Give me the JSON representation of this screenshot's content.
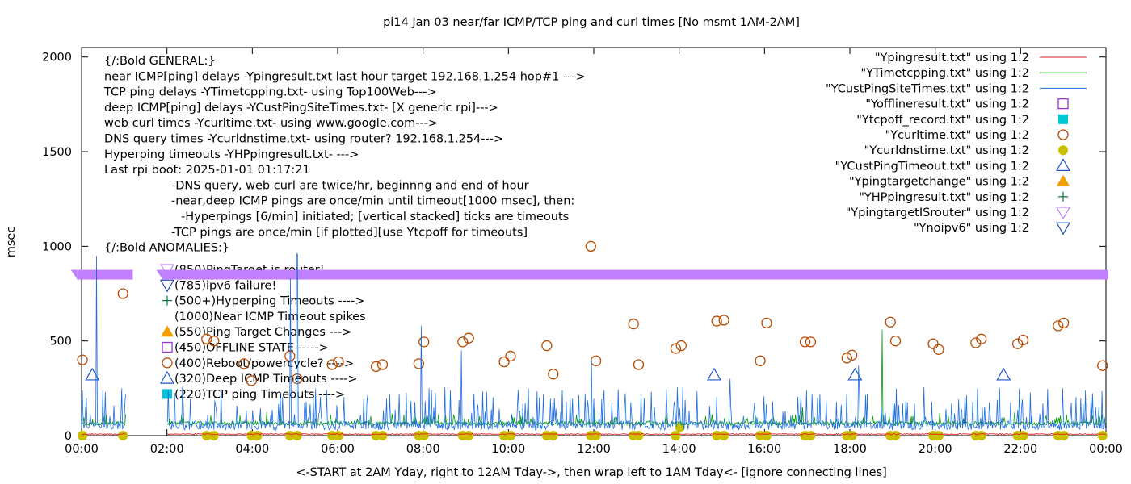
{
  "chart_data": {
    "type": "scatter",
    "title": "pi14 Jan 03  near/far ICMP/TCP ping and curl times [No msmt 1AM-2AM]",
    "xlabel": "<-START at 2AM Yday, right to 12AM Tday->, then wrap left to 1AM Tday<- [ignore connecting lines]",
    "ylabel": "msec",
    "xlim": [
      0,
      24
    ],
    "ylim": [
      0,
      2050
    ],
    "x_ticks": [
      "00:00",
      "02:00",
      "04:00",
      "06:00",
      "08:00",
      "10:00",
      "12:00",
      "14:00",
      "16:00",
      "18:00",
      "20:00",
      "22:00",
      "00:00"
    ],
    "y_ticks": [
      0,
      500,
      1000,
      1500,
      2000
    ],
    "grid": false,
    "legend_position": "top-right",
    "legend": [
      {
        "label": "\"Ypingresult.txt\" using 1:2",
        "marker": "line",
        "color": "#e41a1c"
      },
      {
        "label": "\"YTimetcpping.txt\" using 1:2",
        "marker": "line",
        "color": "#009e00"
      },
      {
        "label": "\"YCustPingSiteTimes.txt\" using 1:2",
        "marker": "line",
        "color": "#1f6fe0"
      },
      {
        "label": "\"Yofflineresult.txt\" using 1:2",
        "marker": "open-square",
        "color": "#9b30d0"
      },
      {
        "label": "\"Ytcpoff_record.txt\" using 1:2",
        "marker": "filled-square",
        "color": "#00c8d8"
      },
      {
        "label": "\"Ycurltime.txt\" using 1:2",
        "marker": "open-circle",
        "color": "#b84a00"
      },
      {
        "label": "\"Ycurldnstime.txt\" using 1:2",
        "marker": "filled-circle",
        "color": "#c8c000"
      },
      {
        "label": "\"YCustPingTimeout.txt\" using 1:2",
        "marker": "open-triangle",
        "color": "#2255cc"
      },
      {
        "label": "\"Ypingtargetchange\" using 1:2",
        "marker": "filled-triangle",
        "color": "#f0a000"
      },
      {
        "label": "\"YHPpingresult.txt\" using 1:2",
        "marker": "plus",
        "color": "#007a3a"
      },
      {
        "label": "\"YpingtargetISrouter\" using 1:2",
        "marker": "open-triangle-down",
        "color": "#c080ff"
      },
      {
        "label": "\"Ynoipv6\" using 1:2",
        "marker": "open-triangle-down",
        "color": "#1f50b0"
      }
    ],
    "annotations": [
      "{/:Bold GENERAL:}",
      "near ICMP[ping] delays -Ypingresult.txt last hour target 192.168.1.254 hop#1 --->",
      "TCP ping delays -YTimetcpping.txt- using Top100Web--->",
      "deep ICMP[ping] delays -YCustPingSiteTimes.txt- [X generic rpi]--->",
      "web curl times -Ycurltime.txt- using www.google.com--->",
      "DNS query times -Ycurldnstime.txt- using router? 192.168.1.254--->",
      "Hyperping timeouts -YHPpingresult.txt- --->",
      "Last rpi boot: 2025-01-01 01:17:21",
      "-DNS query, web curl are twice/hr, beginnng and end of hour",
      "-near,deep ICMP pings are once/min until timeout[1000 msec], then:",
      "-Hyperpings [6/min] initiated; [vertical stacked] ticks are timeouts",
      "-TCP pings are once/min [if plotted][use Ytcpoff for timeouts]",
      "{/:Bold ANOMALIES:}"
    ],
    "anomaly_key": [
      {
        "label": "(850)PingTarget is router!",
        "marker": "open-triangle-down",
        "color": "#c080ff"
      },
      {
        "label": "(785)ipv6 failure!",
        "marker": "open-triangle-down",
        "color": "#1f50b0"
      },
      {
        "label": "(500+)Hyperping Timeouts ---->",
        "marker": "plus",
        "color": "#007a3a"
      },
      {
        "label": "(1000)Near ICMP Timeout spikes",
        "marker": "none",
        "color": "#000000"
      },
      {
        "label": "(550)Ping Target Changes --->",
        "marker": "filled-triangle",
        "color": "#f0a000"
      },
      {
        "label": "(450)OFFLINE STATE ----->",
        "marker": "open-square",
        "color": "#9b30d0"
      },
      {
        "label": "(400)Reboot/powercycle? ---->",
        "marker": "open-circle",
        "color": "#b84a00"
      },
      {
        "label": "(320)Deep ICMP Timeouts ---->",
        "marker": "open-triangle",
        "color": "#2255cc"
      },
      {
        "label": "(220)TCP ping Timeouts ---->",
        "marker": "filled-square",
        "color": "#00c8d8"
      }
    ],
    "series": [
      {
        "name": "YpingtargetISrouter",
        "type": "band",
        "color": "#c080ff",
        "y": 850,
        "segments": [
          [
            -0.1,
            1.2
          ],
          [
            1.9,
            24.2
          ]
        ]
      },
      {
        "name": "Ycurltime",
        "marker": "open-circle",
        "color": "#b84a00",
        "points": [
          [
            0.02,
            400
          ],
          [
            0.97,
            750
          ],
          [
            2.93,
            510
          ],
          [
            3.1,
            500
          ],
          [
            3.8,
            380
          ],
          [
            3.98,
            290
          ],
          [
            4.88,
            420
          ],
          [
            5.05,
            300
          ],
          [
            5.87,
            375
          ],
          [
            6.02,
            390
          ],
          [
            6.9,
            365
          ],
          [
            7.05,
            375
          ],
          [
            7.9,
            380
          ],
          [
            8.02,
            495
          ],
          [
            8.93,
            495
          ],
          [
            9.07,
            515
          ],
          [
            9.9,
            390
          ],
          [
            10.05,
            420
          ],
          [
            10.9,
            475
          ],
          [
            11.05,
            325
          ],
          [
            11.93,
            1000
          ],
          [
            12.05,
            395
          ],
          [
            12.93,
            590
          ],
          [
            13.05,
            375
          ],
          [
            13.92,
            460
          ],
          [
            14.05,
            475
          ],
          [
            14.88,
            605
          ],
          [
            15.05,
            610
          ],
          [
            15.9,
            395
          ],
          [
            16.05,
            595
          ],
          [
            16.95,
            495
          ],
          [
            17.08,
            495
          ],
          [
            17.93,
            410
          ],
          [
            18.05,
            425
          ],
          [
            18.95,
            600
          ],
          [
            19.07,
            500
          ],
          [
            19.95,
            485
          ],
          [
            20.08,
            455
          ],
          [
            20.95,
            490
          ],
          [
            21.08,
            510
          ],
          [
            21.93,
            485
          ],
          [
            22.06,
            505
          ],
          [
            22.88,
            580
          ],
          [
            23.01,
            595
          ],
          [
            23.92,
            370
          ]
        ]
      },
      {
        "name": "Ycurldnstime",
        "marker": "filled-circle",
        "color": "#c8c000",
        "points": [
          [
            0.02,
            0
          ],
          [
            0.97,
            0
          ],
          [
            2.93,
            0
          ],
          [
            3.1,
            0
          ],
          [
            3.98,
            0
          ],
          [
            4.12,
            0
          ],
          [
            4.88,
            0
          ],
          [
            5.05,
            0
          ],
          [
            5.87,
            0
          ],
          [
            6.02,
            0
          ],
          [
            6.9,
            0
          ],
          [
            7.05,
            0
          ],
          [
            7.9,
            0
          ],
          [
            8.02,
            0
          ],
          [
            8.93,
            0
          ],
          [
            9.07,
            0
          ],
          [
            9.9,
            0
          ],
          [
            10.05,
            0
          ],
          [
            10.9,
            0
          ],
          [
            11.05,
            0
          ],
          [
            11.93,
            0
          ],
          [
            12.05,
            0
          ],
          [
            12.93,
            0
          ],
          [
            13.05,
            0
          ],
          [
            13.92,
            0
          ],
          [
            14.02,
            45
          ],
          [
            14.88,
            0
          ],
          [
            15.05,
            0
          ],
          [
            15.9,
            0
          ],
          [
            16.05,
            0
          ],
          [
            16.95,
            0
          ],
          [
            17.08,
            0
          ],
          [
            17.93,
            0
          ],
          [
            18.05,
            0
          ],
          [
            18.95,
            0
          ],
          [
            19.07,
            0
          ],
          [
            19.95,
            0
          ],
          [
            20.08,
            0
          ],
          [
            20.95,
            0
          ],
          [
            21.08,
            0
          ],
          [
            21.93,
            0
          ],
          [
            22.06,
            0
          ],
          [
            22.88,
            0
          ],
          [
            23.01,
            0
          ],
          [
            23.92,
            0
          ]
        ]
      },
      {
        "name": "YCustPingTimeout",
        "marker": "open-triangle",
        "color": "#2255cc",
        "points": [
          [
            0.25,
            320
          ],
          [
            14.82,
            320
          ],
          [
            18.12,
            320
          ],
          [
            21.6,
            320
          ]
        ]
      },
      {
        "name": "YTimetcpping",
        "type": "line",
        "color": "#009e00",
        "baseline": 65,
        "spikes": [
          [
            18.75,
            560
          ],
          [
            12.02,
            140
          ],
          [
            16.9,
            150
          ]
        ]
      },
      {
        "name": "YCustPingSiteTimes",
        "type": "line",
        "color": "#1f6fe0",
        "baseline": 70,
        "spikes": [
          [
            0.35,
            950
          ],
          [
            0.55,
            230
          ],
          [
            4.9,
            830
          ],
          [
            5.05,
            960
          ],
          [
            7.95,
            580
          ],
          [
            8.9,
            450
          ],
          [
            11.95,
            400
          ],
          [
            13.88,
            180
          ],
          [
            15.2,
            300
          ],
          [
            18.2,
            370
          ]
        ]
      },
      {
        "name": "Ypingresult",
        "type": "line",
        "color": "#e41a1c",
        "baseline": 5
      }
    ]
  }
}
